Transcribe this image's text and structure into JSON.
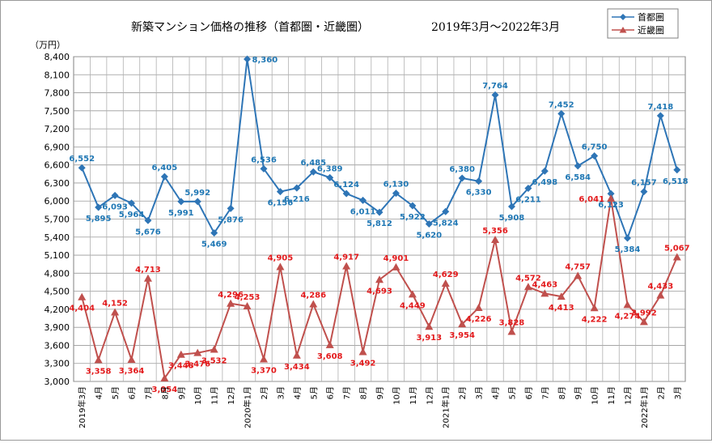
{
  "chart_data": {
    "type": "line",
    "title": "新築マンション価格の推移（首都圏・近畿圏）",
    "subtitle": "2019年3月～2022年3月",
    "ylabel": "（万円）",
    "ylim": [
      3000,
      8400
    ],
    "ystep": 300,
    "grid": true,
    "legend_position": "top-right",
    "categories": [
      "2019年3月",
      "4月",
      "5月",
      "6月",
      "7月",
      "8月",
      "9月",
      "10月",
      "11月",
      "12月",
      "2020年1月",
      "2月",
      "3月",
      "4月",
      "5月",
      "6月",
      "7月",
      "8月",
      "9月",
      "10月",
      "11月",
      "12月",
      "2021年1月",
      "2月",
      "3月",
      "4月",
      "5月",
      "6月",
      "7月",
      "8月",
      "9月",
      "10月",
      "11月",
      "12月",
      "2022年1月",
      "2月",
      "3月"
    ],
    "series": [
      {
        "name": "首都圏",
        "color": "#2e75b6",
        "marker": "diamond",
        "values": [
          6552,
          5895,
          6093,
          5964,
          5676,
          6405,
          5991,
          5992,
          5469,
          5876,
          8360,
          6536,
          6156,
          6216,
          6485,
          6389,
          6124,
          6011,
          5812,
          6130,
          5922,
          5620,
          5824,
          6380,
          6330,
          7764,
          5908,
          6211,
          6498,
          7452,
          6584,
          6750,
          6123,
          5384,
          6157,
          7418,
          6518
        ]
      },
      {
        "name": "近畿圏",
        "color": "#c0504d",
        "marker": "triangle",
        "values": [
          4404,
          3358,
          4152,
          3364,
          4713,
          3054,
          3448,
          3476,
          3532,
          4296,
          4253,
          3370,
          4905,
          3434,
          4286,
          3608,
          4917,
          3492,
          4693,
          4901,
          4449,
          3913,
          4629,
          3954,
          4226,
          5356,
          3828,
          4572,
          4463,
          4413,
          4757,
          4222,
          6041,
          4274,
          3992,
          4433,
          5067
        ]
      }
    ]
  }
}
